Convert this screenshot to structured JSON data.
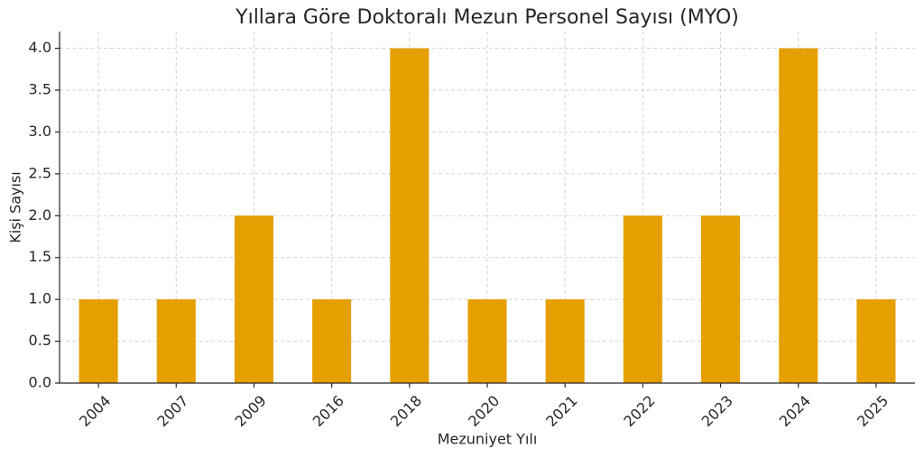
{
  "chart_data": {
    "type": "bar",
    "title": "Yıllara Göre Doktoralı Mezun Personel Sayısı (MYO)",
    "xlabel": "Mezuniyet Yılı",
    "ylabel": "Kişi Sayısı",
    "categories": [
      "2004",
      "2007",
      "2009",
      "2016",
      "2018",
      "2020",
      "2021",
      "2022",
      "2023",
      "2024",
      "2025"
    ],
    "values": [
      1,
      1,
      2,
      1,
      4,
      1,
      1,
      2,
      2,
      4,
      1
    ],
    "color": "#e69f00",
    "ylim": [
      0,
      4.2
    ],
    "yticks": [
      {
        "value": 0,
        "label": "0.0"
      },
      {
        "value": 0.5,
        "label": "0.5"
      },
      {
        "value": 1,
        "label": "1.0"
      },
      {
        "value": 1.5,
        "label": "1.5"
      },
      {
        "value": 2,
        "label": "2.0"
      },
      {
        "value": 2.5,
        "label": "2.5"
      },
      {
        "value": 3,
        "label": "3.0"
      },
      {
        "value": 3.5,
        "label": "3.5"
      },
      {
        "value": 4,
        "label": "4.0"
      }
    ],
    "grid": true
  }
}
